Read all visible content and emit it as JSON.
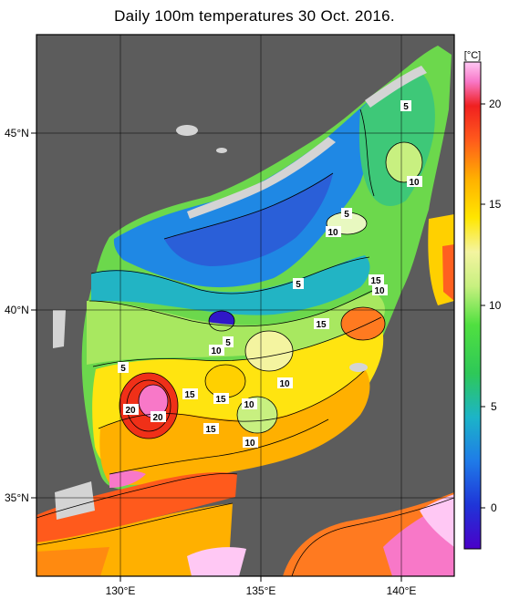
{
  "title": "Daily 100m temperatures 30 Oct. 2016.",
  "map": {
    "lat_labels": [
      "45°N",
      "40°N",
      "35°N"
    ],
    "lon_labels": [
      "130°E",
      "135°E",
      "140°E"
    ]
  },
  "colorbar": {
    "unit": "[°C]",
    "ticks": [
      "20",
      "15",
      "10",
      "5",
      "0"
    ]
  },
  "contour_labels": [
    "5",
    "10",
    "5",
    "10",
    "15",
    "10",
    "5",
    "15",
    "5",
    "10",
    "5",
    "10",
    "15",
    "15",
    "10",
    "20",
    "20",
    "15",
    "10"
  ]
}
